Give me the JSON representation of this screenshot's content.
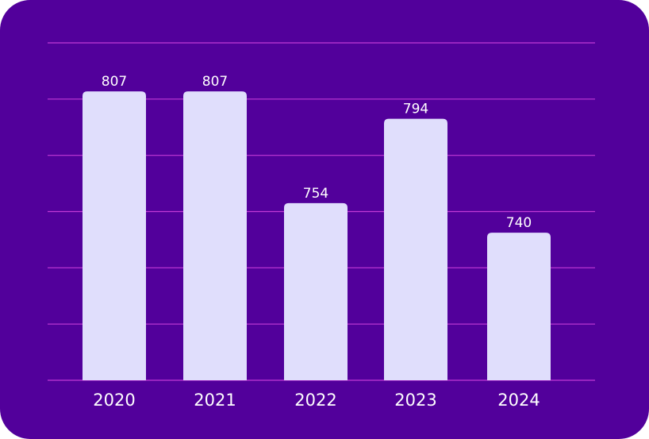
{
  "colors": {
    "background": "#52009b",
    "gridline": "#c23ad6",
    "bar": "#e0defc",
    "text": "#ffffff"
  },
  "chart_data": {
    "type": "bar",
    "title": "",
    "xlabel": "",
    "ylabel": "",
    "categories": [
      "2020",
      "2021",
      "2022",
      "2023",
      "2024"
    ],
    "values": [
      807,
      807,
      754,
      794,
      740
    ],
    "data_labels": [
      "807",
      "807",
      "754",
      "794",
      "740"
    ],
    "ylim": [
      670,
      830
    ],
    "gridlines": 7,
    "grid": true,
    "legend": "none"
  }
}
